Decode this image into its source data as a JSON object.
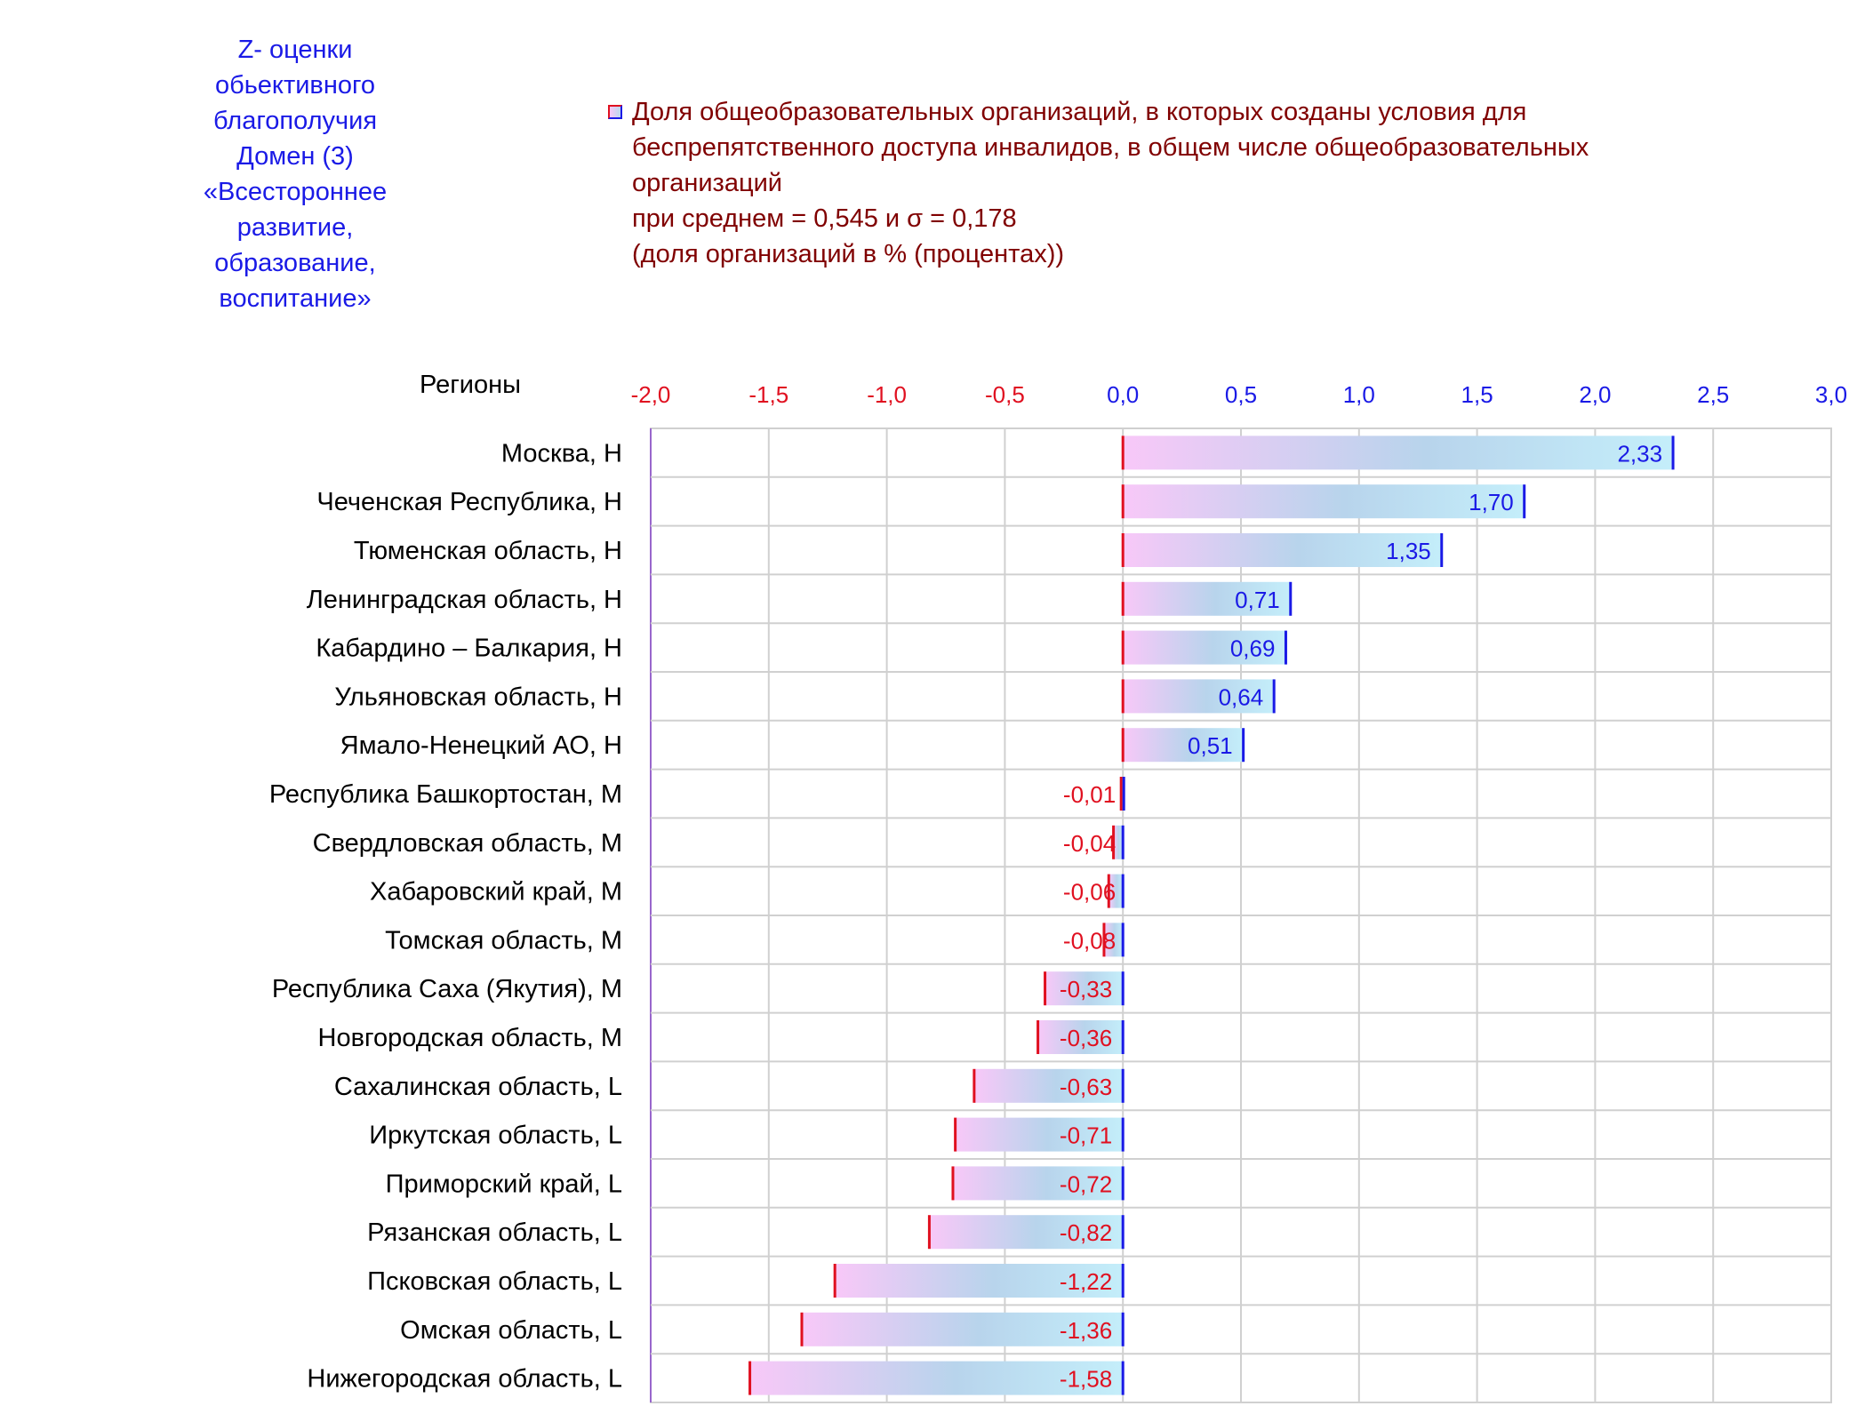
{
  "side_title": {
    "lines": [
      "Z- оценки",
      "обьективного",
      "благополучия",
      "Домен (3)",
      "«Всестороннее",
      "развитие,",
      "образование,",
      "воспитание»"
    ]
  },
  "legend": {
    "lines": [
      "Доля общеобразовательных организаций, в которых созданы условия для",
      "беспрепятственного доступа инвалидов, в общем числе общеобразовательных",
      "организаций",
      "при среднем = 0,545  и σ = 0,178",
      "(доля организаций в % (процентах))"
    ]
  },
  "colors": {
    "negative": "#e01020",
    "positive": "#1a1ae6",
    "legend_text": "#800000",
    "bar_fill_start": "#f8c8f8",
    "bar_fill_end": "#c0e8f8",
    "grid": "#d0d0d0"
  },
  "chart_data": {
    "type": "bar",
    "orientation": "horizontal",
    "ylabel": "Регионы",
    "xlim": [
      -2.0,
      3.0
    ],
    "xticks": [
      "-2,0",
      "-1,5",
      "-1,0",
      "-0,5",
      "0,0",
      "0,5",
      "1,0",
      "1,5",
      "2,0",
      "2,5",
      "3,0"
    ],
    "xtick_values": [
      -2.0,
      -1.5,
      -1.0,
      -0.5,
      0.0,
      0.5,
      1.0,
      1.5,
      2.0,
      2.5,
      3.0
    ],
    "grid": true,
    "categories": [
      "Москва,  Н",
      "Чеченская Республика,  Н",
      "Тюменская область,  Н",
      "Ленинградская область,  Н",
      "Кабардино – Балкария,  Н",
      "Ульяновская область,  Н",
      "Ямало-Ненецкий АО,  Н",
      "Республика Башкортостан,  М",
      "Свердловская область,  М",
      "Хабаровский край,  М",
      "Томская область,  М",
      "Республика Саха (Якутия),  М",
      "Новгородская область,  М",
      "Сахалинская область,  L",
      "Иркутская область,  L",
      "Приморский край,  L",
      "Рязанская область,  L",
      "Псковская область,  L",
      "Омская область,  L",
      "Нижегородская область,  L"
    ],
    "values": [
      2.33,
      1.7,
      1.35,
      0.71,
      0.69,
      0.64,
      0.51,
      -0.01,
      -0.04,
      -0.06,
      -0.08,
      -0.33,
      -0.36,
      -0.63,
      -0.71,
      -0.72,
      -0.82,
      -1.22,
      -1.36,
      -1.58
    ],
    "labels": [
      "2,33",
      "1,70",
      "1,35",
      "0,71",
      "0,69",
      "0,64",
      "0,51",
      "-0,01",
      "-0,04",
      "-0,06",
      "-0,08",
      "-0,33",
      "-0,36",
      "-0,63",
      "-0,71",
      "-0,72",
      "-0,82",
      "-1,22",
      "-1,36",
      "-1,58"
    ]
  }
}
